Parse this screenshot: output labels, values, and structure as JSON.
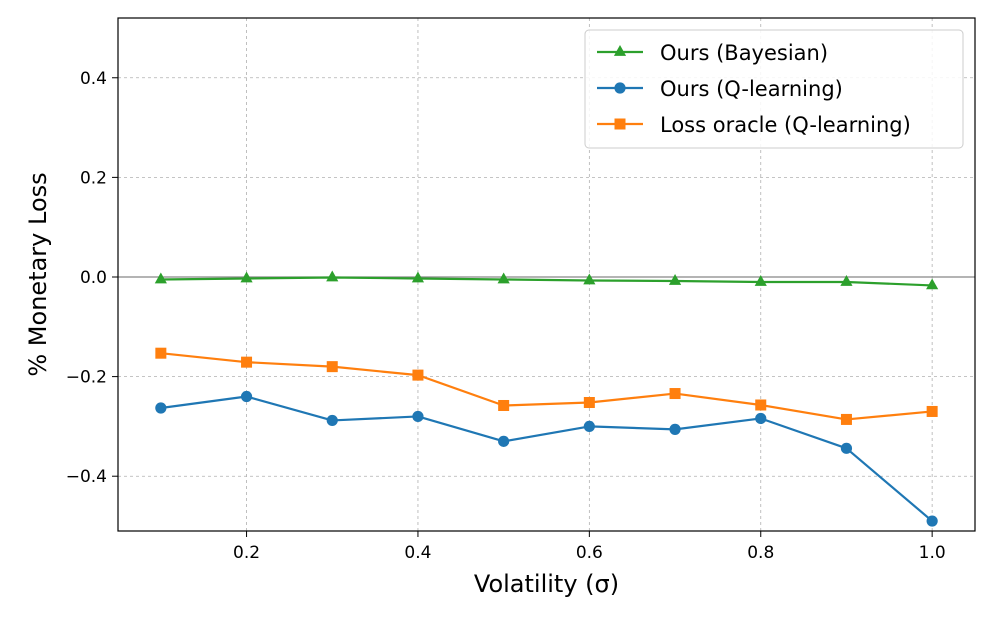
{
  "chart_data": {
    "type": "line",
    "title": "",
    "xlabel": "Volatility (σ)",
    "ylabel": "% Monetary Loss",
    "x": [
      0.1,
      0.2,
      0.3,
      0.4,
      0.5,
      0.6,
      0.7,
      0.8,
      0.9,
      1.0
    ],
    "xlim": [
      0.05,
      1.05
    ],
    "ylim": [
      -0.51,
      0.52
    ],
    "xticks": [
      0.2,
      0.4,
      0.6,
      0.8,
      1.0
    ],
    "xtick_labels": [
      "0.2",
      "0.4",
      "0.6",
      "0.8",
      "1.0"
    ],
    "yticks": [
      0.4,
      0.2,
      0.0,
      -0.2,
      -0.4
    ],
    "ytick_labels": [
      "0.4",
      "0.2",
      "0.0",
      "−0.2",
      "−0.4"
    ],
    "grid": true,
    "zero_line": true,
    "legend_position": "top-right",
    "series": [
      {
        "name": "Ours (Bayesian)",
        "color": "#2ca02c",
        "marker": "triangle",
        "values": [
          -0.005,
          -0.003,
          -0.001,
          -0.003,
          -0.005,
          -0.007,
          -0.008,
          -0.01,
          -0.01,
          -0.017
        ]
      },
      {
        "name": "Ours (Q-learning)",
        "color": "#1f77b4",
        "marker": "circle",
        "values": [
          -0.263,
          -0.24,
          -0.288,
          -0.28,
          -0.33,
          -0.3,
          -0.306,
          -0.284,
          -0.344,
          -0.49
        ]
      },
      {
        "name": "Loss oracle (Q-learning)",
        "color": "#ff7f0e",
        "marker": "square",
        "values": [
          -0.153,
          -0.171,
          -0.18,
          -0.197,
          -0.258,
          -0.252,
          -0.234,
          -0.257,
          -0.286,
          -0.27
        ]
      }
    ]
  }
}
